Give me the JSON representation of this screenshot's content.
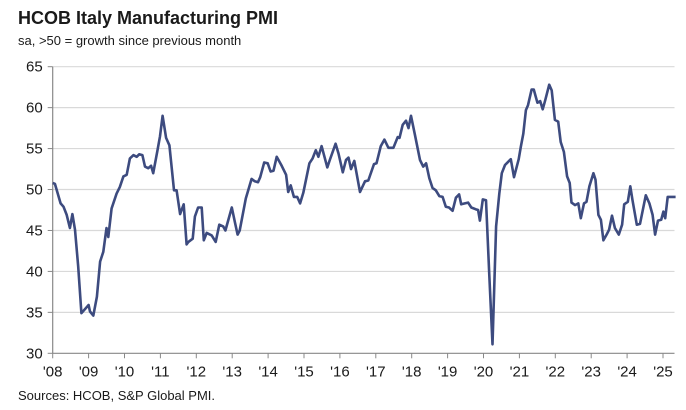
{
  "chart_data": {
    "type": "line",
    "title": "HCOB Italy Manufacturing PMI",
    "subtitle": "sa, >50 = growth since previous month",
    "source": "Sources: HCOB, S&P Global PMI.",
    "ylim": [
      30,
      65
    ],
    "yticks": [
      30,
      35,
      40,
      45,
      50,
      55,
      60,
      65
    ],
    "xlim": [
      2008,
      2025.35
    ],
    "xticks": [
      2008,
      2009,
      2010,
      2011,
      2012,
      2013,
      2014,
      2015,
      2016,
      2017,
      2018,
      2019,
      2020,
      2021,
      2022,
      2023,
      2024,
      2025
    ],
    "xtick_labels": [
      "'08",
      "'09",
      "'10",
      "'11",
      "'12",
      "'13",
      "'14",
      "'15",
      "'16",
      "'17",
      "'18",
      "'19",
      "'20",
      "'21",
      "'22",
      "'23",
      "'24",
      "'25"
    ],
    "grid": "horizontal",
    "line_color": "#3d4b7f",
    "series": [
      {
        "x": [
          2008.0,
          2008.06,
          2008.22,
          2008.3,
          2008.39,
          2008.48,
          2008.55,
          2008.62,
          2008.71,
          2008.8,
          2009.0,
          2009.04,
          2009.13,
          2009.23,
          2009.32,
          2009.41,
          2009.5,
          2009.55,
          2009.64,
          2009.78,
          2009.87,
          2009.97,
          2010.06,
          2010.15,
          2010.25,
          2010.34,
          2010.41,
          2010.5,
          2010.57,
          2010.66,
          2010.74,
          2010.8,
          2010.92,
          2010.99,
          2011.06,
          2011.16,
          2011.25,
          2011.38,
          2011.45,
          2011.55,
          2011.65,
          2011.73,
          2011.78,
          2011.9,
          2011.96,
          2012.05,
          2012.15,
          2012.21,
          2012.29,
          2012.43,
          2012.54,
          2012.64,
          2012.75,
          2012.81,
          2012.99,
          2013.08,
          2013.15,
          2013.21,
          2013.38,
          2013.54,
          2013.63,
          2013.72,
          2013.78,
          2013.89,
          2013.99,
          2014.07,
          2014.15,
          2014.24,
          2014.38,
          2014.5,
          2014.56,
          2014.63,
          2014.72,
          2014.81,
          2014.89,
          2014.98,
          2015.15,
          2015.24,
          2015.33,
          2015.4,
          2015.49,
          2015.65,
          2015.72,
          2015.88,
          2015.96,
          2016.08,
          2016.17,
          2016.24,
          2016.31,
          2016.4,
          2016.56,
          2016.7,
          2016.79,
          2016.95,
          2017.02,
          2017.14,
          2017.24,
          2017.35,
          2017.49,
          2017.61,
          2017.66,
          2017.75,
          2017.84,
          2017.91,
          2017.98,
          2018.09,
          2018.23,
          2018.32,
          2018.4,
          2018.49,
          2018.58,
          2018.67,
          2018.77,
          2018.86,
          2018.95,
          2019.04,
          2019.14,
          2019.23,
          2019.32,
          2019.38,
          2019.48,
          2019.57,
          2019.66,
          2019.78,
          2019.85,
          2019.9,
          2019.98,
          2020.07,
          2020.16,
          2020.25,
          2020.35,
          2020.44,
          2020.51,
          2020.6,
          2020.69,
          2020.76,
          2020.85,
          2020.98,
          2021.04,
          2021.11,
          2021.18,
          2021.24,
          2021.34,
          2021.4,
          2021.5,
          2021.58,
          2021.65,
          2021.72,
          2021.83,
          2021.9,
          2021.99,
          2022.08,
          2022.15,
          2022.24,
          2022.33,
          2022.4,
          2022.45,
          2022.55,
          2022.64,
          2022.71,
          2022.8,
          2022.87,
          2022.95,
          2023.06,
          2023.12,
          2023.2,
          2023.27,
          2023.34,
          2023.43,
          2023.5,
          2023.58,
          2023.66,
          2023.77,
          2023.86,
          2023.92,
          2024.02,
          2024.09,
          2024.15,
          2024.27,
          2024.36,
          2024.52,
          2024.62,
          2024.71,
          2024.78,
          2024.86,
          2024.95,
          2025.01,
          2025.06,
          2025.13,
          2025.24,
          2025.35
        ],
        "y": [
          50.8,
          50.7,
          48.3,
          47.9,
          46.9,
          45.3,
          47.0,
          45.1,
          40.6,
          34.9,
          35.9,
          35.1,
          34.6,
          36.9,
          41.2,
          42.4,
          45.3,
          44.2,
          47.7,
          49.5,
          50.3,
          51.6,
          51.8,
          53.8,
          54.2,
          54.0,
          54.3,
          54.2,
          52.8,
          52.6,
          52.9,
          52.0,
          54.8,
          56.5,
          59.0,
          56.3,
          55.4,
          49.9,
          49.9,
          47.0,
          48.2,
          43.3,
          43.6,
          44.0,
          46.7,
          47.8,
          47.8,
          43.8,
          44.7,
          44.4,
          43.6,
          45.7,
          45.5,
          45.0,
          47.8,
          45.9,
          44.5,
          45.0,
          48.9,
          51.3,
          51.0,
          50.9,
          51.5,
          53.3,
          53.2,
          52.2,
          52.3,
          54.0,
          52.9,
          51.8,
          49.7,
          50.5,
          49.1,
          49.1,
          48.3,
          49.6,
          53.2,
          53.8,
          54.8,
          54.0,
          55.3,
          52.7,
          53.6,
          55.6,
          54.4,
          52.1,
          53.6,
          53.9,
          52.5,
          53.5,
          49.7,
          51.0,
          51.1,
          53.1,
          53.2,
          55.3,
          56.1,
          55.1,
          55.1,
          56.4,
          56.3,
          57.9,
          58.4,
          57.5,
          59.0,
          56.7,
          53.6,
          52.8,
          53.2,
          51.4,
          50.2,
          49.9,
          49.2,
          49.1,
          47.9,
          47.8,
          47.4,
          49.0,
          49.4,
          48.2,
          48.3,
          48.4,
          47.8,
          47.6,
          47.5,
          46.2,
          48.8,
          48.7,
          39.8,
          31.1,
          45.5,
          49.5,
          52.0,
          53.0,
          53.4,
          53.7,
          51.5,
          53.7,
          55.2,
          56.8,
          59.7,
          60.3,
          62.2,
          62.2,
          60.6,
          60.8,
          59.8,
          60.9,
          62.8,
          62.1,
          58.5,
          58.3,
          55.8,
          54.6,
          51.6,
          50.8,
          48.4,
          48.1,
          48.3,
          46.5,
          48.3,
          48.5,
          50.4,
          52.0,
          51.2,
          46.9,
          46.3,
          43.8,
          44.5,
          45.1,
          46.8,
          45.3,
          44.5,
          45.7,
          48.2,
          48.5,
          50.4,
          48.7,
          45.7,
          45.8,
          49.3,
          48.3,
          46.9,
          44.5,
          46.2,
          46.3,
          47.3,
          46.5,
          49.1,
          49.1,
          49.1
        ]
      }
    ]
  }
}
